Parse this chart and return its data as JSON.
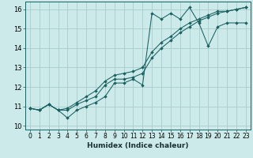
{
  "xlabel": "Humidex (Indice chaleur)",
  "bg_color": "#cceaea",
  "grid_color": "#aacccc",
  "line_color": "#1a6060",
  "xlim": [
    -0.5,
    23.5
  ],
  "ylim": [
    9.8,
    16.4
  ],
  "yticks": [
    10,
    11,
    12,
    13,
    14,
    15,
    16
  ],
  "xticks": [
    0,
    1,
    2,
    3,
    4,
    5,
    6,
    7,
    8,
    9,
    10,
    11,
    12,
    13,
    14,
    15,
    16,
    17,
    18,
    19,
    20,
    21,
    22,
    23
  ],
  "series": [
    [
      10.9,
      10.8,
      11.1,
      10.8,
      10.4,
      10.8,
      11.0,
      11.2,
      11.5,
      12.2,
      12.2,
      12.4,
      12.1,
      15.8,
      15.5,
      15.8,
      15.5,
      16.1,
      15.3,
      14.1,
      15.1,
      15.3,
      15.3,
      15.3
    ],
    [
      10.9,
      10.8,
      11.1,
      10.8,
      10.8,
      11.1,
      11.3,
      11.5,
      12.1,
      12.4,
      12.4,
      12.5,
      12.7,
      13.5,
      14.0,
      14.4,
      14.8,
      15.1,
      15.4,
      15.6,
      15.8,
      15.9,
      16.0,
      16.1
    ],
    [
      10.9,
      10.8,
      11.1,
      10.8,
      10.9,
      11.2,
      11.5,
      11.8,
      12.3,
      12.6,
      12.7,
      12.8,
      13.0,
      13.8,
      14.3,
      14.6,
      15.0,
      15.3,
      15.5,
      15.7,
      15.9,
      15.9,
      16.0,
      16.1
    ]
  ],
  "tick_fontsize": 5.5,
  "xlabel_fontsize": 6.5
}
